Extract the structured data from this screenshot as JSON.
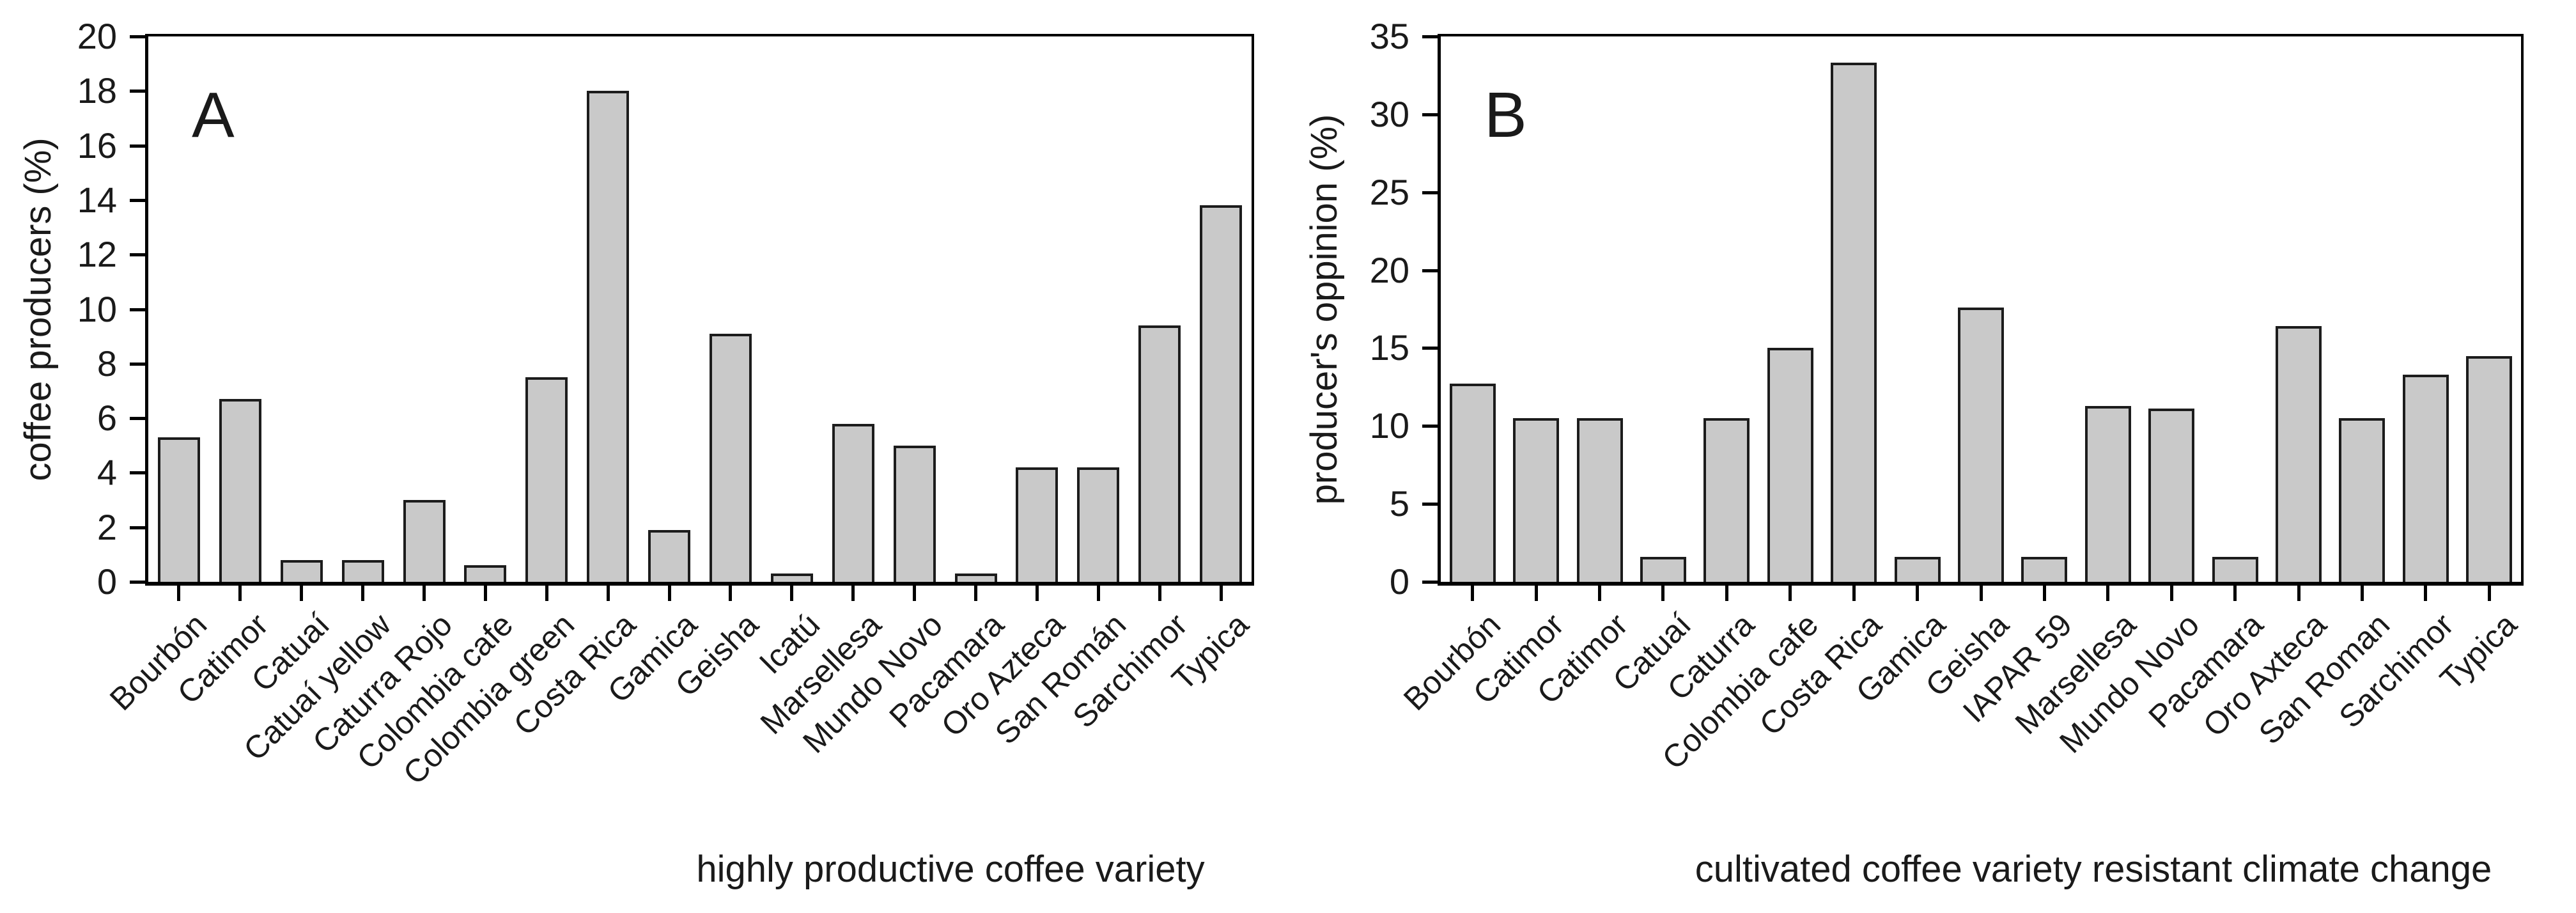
{
  "chart_data": [
    {
      "type": "bar",
      "panel_label": "A",
      "title": "",
      "xlabel": "highly productive coffee variety",
      "ylabel": "coffee producers (%)",
      "ylim": [
        0,
        20
      ],
      "ytick_step": 2,
      "grid": "off",
      "legend": "none",
      "categories": [
        "Bourbón",
        "Catimor",
        "Catuaí",
        "Catuaí yellow",
        "Caturra Rojo",
        "Colombia cafe",
        "Colombia green",
        "Costa Rica",
        "Gamica",
        "Geisha",
        "Icatú",
        "Marsellesa",
        "Mundo Novo",
        "Pacamara",
        "Oro Azteca",
        "San Román",
        "Sarchimor",
        "Typica"
      ],
      "values": [
        5.3,
        6.7,
        0.8,
        0.8,
        3.0,
        0.6,
        7.5,
        18.0,
        1.9,
        9.1,
        0.3,
        5.8,
        5.0,
        0.3,
        4.2,
        4.2,
        9.4,
        13.8
      ]
    },
    {
      "type": "bar",
      "panel_label": "B",
      "title": "",
      "xlabel": "cultivated coffee variety resistant climate change",
      "ylabel": "producer's oppinion (%)",
      "ylim": [
        0,
        35
      ],
      "ytick_step": 5,
      "grid": "off",
      "legend": "none",
      "categories": [
        "Bourbón",
        "Catimor",
        "Catimor",
        "Catuaí",
        "Caturra",
        "Colombia cafe",
        "Costa Rica",
        "Gamica",
        "Geisha",
        "IAPAR 59",
        "Marsellesa",
        "Mundo Novo",
        "Pacamara",
        "Oro Axteca",
        "San Roman",
        "Sarchimor",
        "Typica"
      ],
      "values": [
        12.7,
        10.5,
        10.5,
        1.6,
        10.5,
        15.0,
        33.3,
        1.6,
        17.6,
        1.6,
        11.3,
        11.1,
        1.6,
        16.4,
        10.5,
        13.3,
        14.5
      ]
    }
  ],
  "colors": {
    "bar_fill": "#c9c9c9",
    "bar_stroke": "#1c1c1c",
    "axis": "#000000",
    "text": "#1a1a1a",
    "background": "#ffffff"
  }
}
